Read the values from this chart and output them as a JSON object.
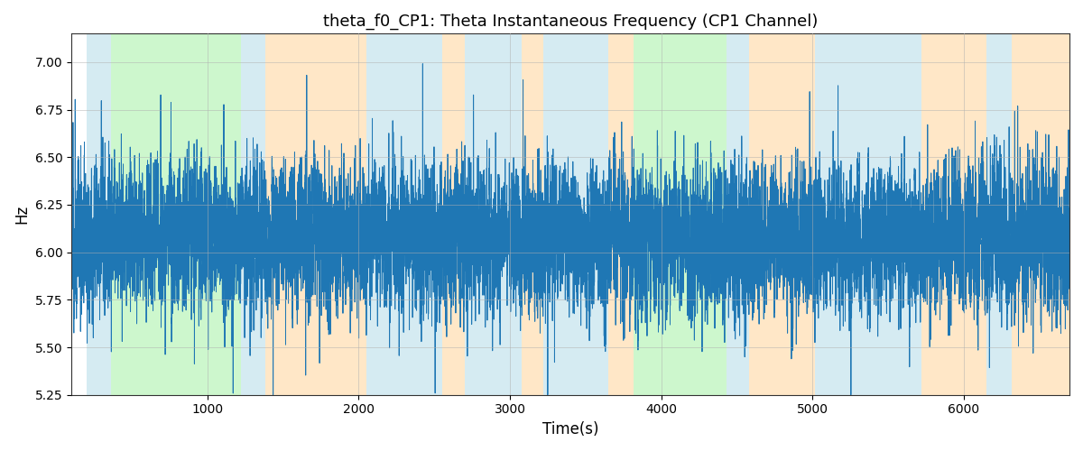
{
  "title": "theta_f0_CP1: Theta Instantaneous Frequency (CP1 Channel)",
  "xlabel": "Time(s)",
  "ylabel": "Hz",
  "xlim": [
    100,
    6700
  ],
  "ylim": [
    5.25,
    7.15
  ],
  "yticks": [
    5.25,
    5.5,
    5.75,
    6.0,
    6.25,
    6.5,
    6.75,
    7.0
  ],
  "xticks": [
    1000,
    2000,
    3000,
    4000,
    5000,
    6000
  ],
  "line_color": "#1f77b4",
  "line_width": 0.7,
  "grid_color": "#b0b0b0",
  "grid_alpha": 0.5,
  "background_color": "#ffffff",
  "bands": [
    {
      "start": 200,
      "end": 360,
      "color": "#add8e6",
      "alpha": 0.5
    },
    {
      "start": 360,
      "end": 1220,
      "color": "#90ee90",
      "alpha": 0.45
    },
    {
      "start": 1220,
      "end": 1380,
      "color": "#add8e6",
      "alpha": 0.5
    },
    {
      "start": 1380,
      "end": 2050,
      "color": "#ffd59a",
      "alpha": 0.55
    },
    {
      "start": 2050,
      "end": 2550,
      "color": "#add8e6",
      "alpha": 0.5
    },
    {
      "start": 2550,
      "end": 2700,
      "color": "#ffd59a",
      "alpha": 0.55
    },
    {
      "start": 2700,
      "end": 3080,
      "color": "#add8e6",
      "alpha": 0.5
    },
    {
      "start": 3080,
      "end": 3220,
      "color": "#ffd59a",
      "alpha": 0.55
    },
    {
      "start": 3220,
      "end": 3650,
      "color": "#add8e6",
      "alpha": 0.5
    },
    {
      "start": 3650,
      "end": 3820,
      "color": "#ffd59a",
      "alpha": 0.55
    },
    {
      "start": 3820,
      "end": 4080,
      "color": "#90ee90",
      "alpha": 0.45
    },
    {
      "start": 4080,
      "end": 4430,
      "color": "#90ee90",
      "alpha": 0.45
    },
    {
      "start": 4430,
      "end": 4580,
      "color": "#add8e6",
      "alpha": 0.5
    },
    {
      "start": 4580,
      "end": 5020,
      "color": "#ffd59a",
      "alpha": 0.55
    },
    {
      "start": 5020,
      "end": 5720,
      "color": "#add8e6",
      "alpha": 0.5
    },
    {
      "start": 5720,
      "end": 5870,
      "color": "#ffd59a",
      "alpha": 0.55
    },
    {
      "start": 5870,
      "end": 6150,
      "color": "#ffd59a",
      "alpha": 0.55
    },
    {
      "start": 6150,
      "end": 6320,
      "color": "#add8e6",
      "alpha": 0.5
    },
    {
      "start": 6320,
      "end": 6700,
      "color": "#ffd59a",
      "alpha": 0.55
    }
  ],
  "seed": 12345,
  "n_points": 13000,
  "t_start": 100,
  "t_end": 6700,
  "base_freq": 6.08,
  "noise_scale": 0.18,
  "ar_coeff": 0.35
}
